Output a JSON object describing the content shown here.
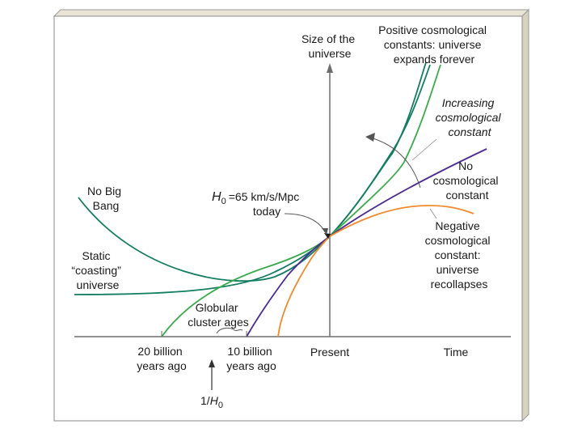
{
  "axes": {
    "y_label": [
      "Size of the",
      "universe"
    ],
    "x_label": "Time",
    "ticks": {
      "billion20": [
        "20 billion",
        "years ago"
      ],
      "billion10": [
        "10 billion",
        "years ago"
      ],
      "present": "Present"
    },
    "hubble_time_label": {
      "base": "1/",
      "H": "H",
      "sub": "0"
    }
  },
  "curve_labels": {
    "positive": [
      "Positive cosmological",
      "constants: universe",
      "expands forever"
    ],
    "increasing": [
      "Increasing",
      "cosmological",
      "constant"
    ],
    "none": [
      "No",
      "cosmological",
      "constant"
    ],
    "negative": [
      "Negative",
      "cosmological",
      "constant:",
      "universe",
      "recollapses"
    ],
    "no_big_bang": [
      "No Big",
      "Bang"
    ],
    "static": [
      "Static",
      "“coasting”",
      "universe"
    ],
    "globular": [
      "Globular",
      "cluster ages"
    ]
  },
  "hubble": {
    "symbol": "H",
    "sub": "0",
    "value": "=65 km/s/Mpc",
    "today": "today"
  },
  "colors": {
    "teal": "#127d60",
    "green": "#3aaa4a",
    "purple": "#4a2a94",
    "orange": "#f08a2c",
    "axis": "#6e6e6e",
    "frame_shadow": "#d8d3c0"
  }
}
